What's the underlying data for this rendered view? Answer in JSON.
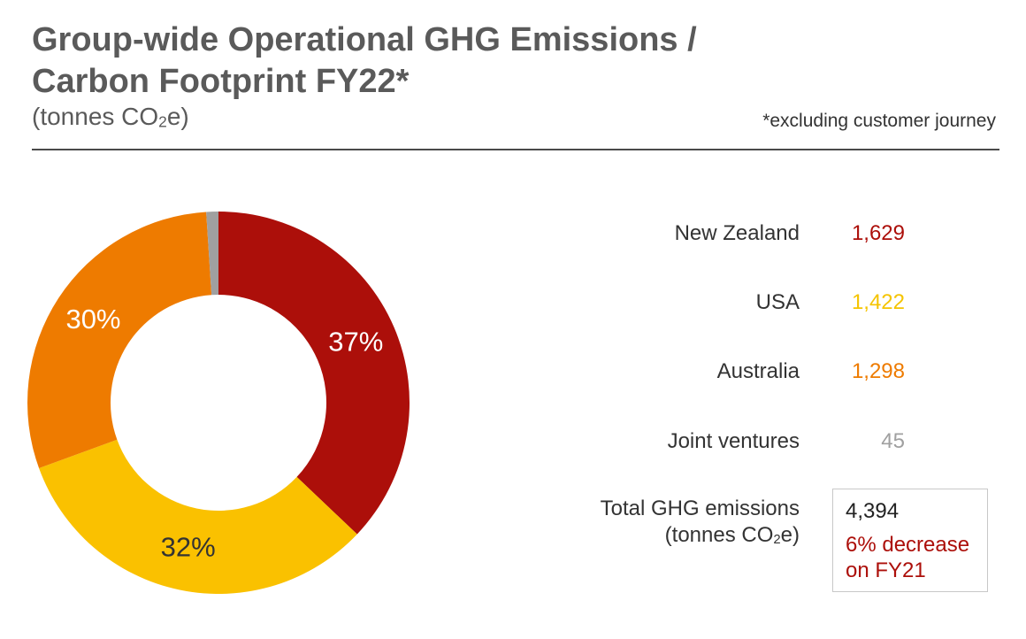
{
  "header": {
    "title_line1": "Group-wide Operational GHG Emissions /",
    "title_line2": "Carbon Footprint FY22*",
    "subtitle_pre": "(tonnes CO",
    "subtitle_sub": "2",
    "subtitle_post": "e)",
    "footnote": "*excluding customer journey"
  },
  "chart_data": {
    "type": "pie",
    "donut": true,
    "categories": [
      "New Zealand",
      "USA",
      "Australia",
      "Joint ventures"
    ],
    "values": [
      1629,
      1422,
      1298,
      45
    ],
    "percent_labels": [
      "37%",
      "32%",
      "30%",
      ""
    ],
    "colors": [
      "#ac0f0a",
      "#fac100",
      "#ee7b00",
      "#a0a0a0"
    ],
    "label_colors": [
      "#ffffff",
      "#333333",
      "#ffffff",
      "#ffffff"
    ],
    "start_angle_deg": 0,
    "direction": "clockwise"
  },
  "legend": {
    "items": [
      {
        "name": "New Zealand",
        "value": "1,629",
        "color": "#ac0f0a"
      },
      {
        "name": "USA",
        "value": "1,422",
        "color": "#f5c400"
      },
      {
        "name": "Australia",
        "value": "1,298",
        "color": "#ee7b00"
      },
      {
        "name": "Joint ventures",
        "value": "45",
        "color": "#a0a0a0"
      }
    ]
  },
  "total": {
    "label_line1": "Total GHG emissions",
    "label_line2_pre": "(tonnes CO",
    "label_line2_sub": "2",
    "label_line2_post": "e)",
    "value": "4,394",
    "change_line1": "6% decrease",
    "change_line2": "on FY21",
    "change_color": "#ac0f0a"
  }
}
